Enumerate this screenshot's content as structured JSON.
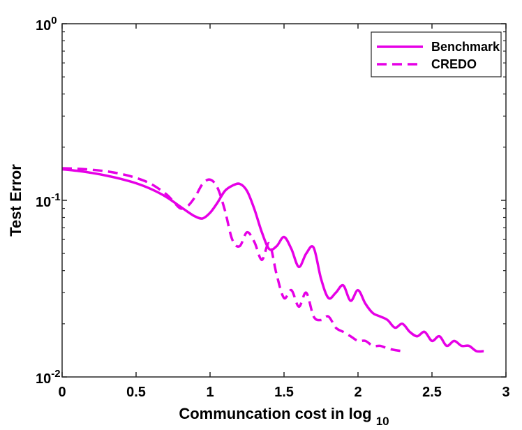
{
  "chart_data": {
    "type": "line",
    "title": "",
    "xlabel": "Communcation cost in log",
    "xlabel_sub": "10",
    "ylabel": "Test Error",
    "x_scale": "linear",
    "y_scale": "log",
    "xlim": [
      0,
      3
    ],
    "ylim": [
      0.01,
      1
    ],
    "x_ticks": [
      {
        "value": 0,
        "label": "0"
      },
      {
        "value": 0.5,
        "label": "0.5"
      },
      {
        "value": 1,
        "label": "1"
      },
      {
        "value": 1.5,
        "label": "1.5"
      },
      {
        "value": 2,
        "label": "2"
      },
      {
        "value": 2.5,
        "label": "2.5"
      },
      {
        "value": 3,
        "label": "3"
      }
    ],
    "y_ticks": [
      {
        "value": 0.01,
        "base": "10",
        "exp": "-2"
      },
      {
        "value": 0.1,
        "base": "10",
        "exp": "-1"
      },
      {
        "value": 1,
        "base": "10",
        "exp": "0"
      }
    ],
    "grid": false,
    "legend_position": "top-right",
    "color": "#e600e6",
    "series": [
      {
        "name": "Benchmark",
        "style": "solid",
        "x": [
          0,
          0.1,
          0.2,
          0.3,
          0.4,
          0.5,
          0.6,
          0.7,
          0.8,
          0.85,
          0.9,
          0.95,
          1.0,
          1.05,
          1.1,
          1.15,
          1.2,
          1.25,
          1.3,
          1.35,
          1.4,
          1.45,
          1.5,
          1.55,
          1.6,
          1.65,
          1.7,
          1.75,
          1.8,
          1.85,
          1.9,
          1.95,
          2.0,
          2.05,
          2.1,
          2.15,
          2.2,
          2.25,
          2.3,
          2.35,
          2.4,
          2.45,
          2.5,
          2.55,
          2.6,
          2.65,
          2.7,
          2.75,
          2.8,
          2.85
        ],
        "y": [
          0.15,
          0.147,
          0.143,
          0.138,
          0.132,
          0.125,
          0.116,
          0.105,
          0.092,
          0.086,
          0.081,
          0.079,
          0.085,
          0.097,
          0.113,
          0.121,
          0.124,
          0.113,
          0.089,
          0.066,
          0.053,
          0.055,
          0.062,
          0.053,
          0.042,
          0.05,
          0.054,
          0.036,
          0.028,
          0.03,
          0.033,
          0.027,
          0.031,
          0.026,
          0.023,
          0.022,
          0.021,
          0.019,
          0.02,
          0.018,
          0.017,
          0.018,
          0.016,
          0.017,
          0.015,
          0.016,
          0.015,
          0.015,
          0.014,
          0.014
        ]
      },
      {
        "name": "CREDO",
        "style": "dashed",
        "x": [
          0,
          0.1,
          0.2,
          0.3,
          0.4,
          0.5,
          0.6,
          0.7,
          0.75,
          0.8,
          0.85,
          0.9,
          0.95,
          1.0,
          1.05,
          1.1,
          1.15,
          1.2,
          1.25,
          1.3,
          1.35,
          1.4,
          1.45,
          1.5,
          1.55,
          1.6,
          1.65,
          1.7,
          1.75,
          1.8,
          1.85,
          1.9,
          1.95,
          2.0,
          2.05,
          2.1,
          2.15,
          2.2,
          2.25,
          2.3
        ],
        "y": [
          0.152,
          0.151,
          0.149,
          0.146,
          0.141,
          0.134,
          0.124,
          0.109,
          0.099,
          0.09,
          0.093,
          0.105,
          0.124,
          0.131,
          0.118,
          0.088,
          0.06,
          0.055,
          0.066,
          0.058,
          0.046,
          0.057,
          0.038,
          0.028,
          0.031,
          0.025,
          0.03,
          0.022,
          0.021,
          0.022,
          0.019,
          0.018,
          0.017,
          0.016,
          0.016,
          0.015,
          0.015,
          0.0145,
          0.0142,
          0.014
        ]
      }
    ]
  }
}
